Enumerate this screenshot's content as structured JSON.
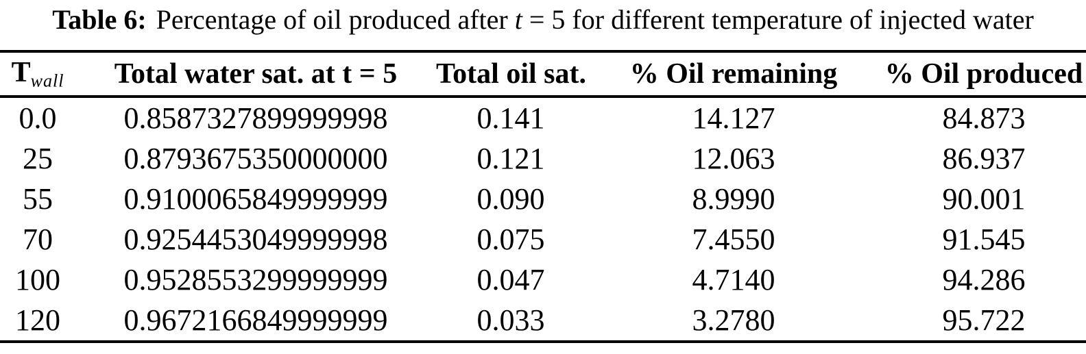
{
  "title": {
    "bold": "Table 6:",
    "pre": "Percentage of oil produced after ",
    "variable": "t",
    "post": " = 5 for different temperature of injected water"
  },
  "table": {
    "headers": {
      "col1_base": "T",
      "col1_sub": "wall",
      "col2": "Total water sat. at t = 5",
      "col3": "Total oil sat.",
      "col4": "% Oil remaining",
      "col5": "% Oil produced"
    },
    "rows": [
      [
        "0.0",
        "0.8587327899999998",
        "0.141",
        "14.127",
        "84.873"
      ],
      [
        "25",
        "0.8793675350000000",
        "0.121",
        "12.063",
        "86.937"
      ],
      [
        "55",
        "0.9100065849999999",
        "0.090",
        "8.9990",
        "90.001"
      ],
      [
        "70",
        "0.9254453049999998",
        "0.075",
        "7.4550",
        "91.545"
      ],
      [
        "100",
        "0.9528553299999999",
        "0.047",
        "4.7140",
        "94.286"
      ],
      [
        "120",
        "0.9672166849999999",
        "0.033",
        "3.2780",
        "95.722"
      ]
    ]
  },
  "colors": {
    "text": "#000000",
    "background": "#ffffff",
    "rule": "#000000"
  }
}
